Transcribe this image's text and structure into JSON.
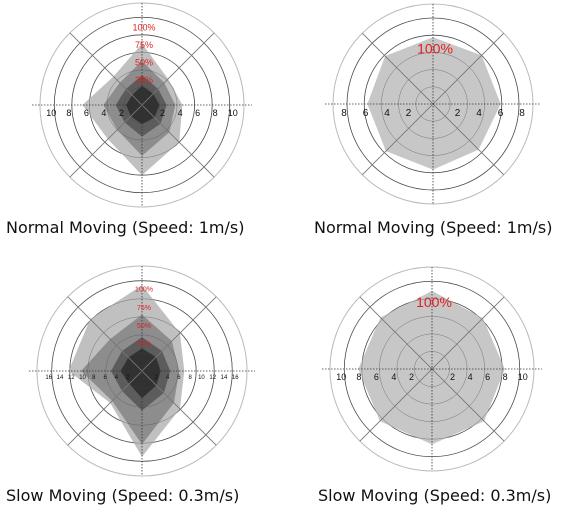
{
  "colors": {
    "red_label": "#e02020",
    "grid": "#555555",
    "outer_ring": "#bbbbbb"
  },
  "chart_data": [
    {
      "type": "radar",
      "caption": "Normal Moving (Speed: 1m/s)",
      "axis_max": 10,
      "ticks": [
        "10",
        "8",
        "6",
        "4",
        "2",
        "2",
        "4",
        "6",
        "8",
        "10"
      ],
      "tick_values": [
        10,
        8,
        6,
        4,
        2,
        2,
        4,
        6,
        8,
        10
      ],
      "series": [
        {
          "label": "100%",
          "fill": "#bdbdbd",
          "values": [
            7.0,
            4.2,
            4.6,
            6.0,
            8.0,
            5.5,
            6.8,
            4.6
          ]
        },
        {
          "label": "75%",
          "fill": "#8a8a8a",
          "values": [
            5.0,
            3.6,
            3.8,
            4.4,
            5.8,
            4.0,
            4.4,
            3.6
          ]
        },
        {
          "label": "50%",
          "fill": "#5a5a5a",
          "values": [
            3.4,
            2.6,
            2.8,
            3.0,
            3.6,
            2.8,
            3.0,
            2.6
          ]
        },
        {
          "label": "35%",
          "fill": "#2e2e2e",
          "values": [
            2.2,
            1.8,
            2.0,
            2.0,
            2.2,
            1.8,
            1.8,
            1.6
          ]
        }
      ]
    },
    {
      "type": "radar",
      "caption": "Normal Moving (Speed: 1m/s)",
      "axis_max": 8,
      "ticks": [
        "8",
        "6",
        "4",
        "2",
        "2",
        "4",
        "6",
        "8"
      ],
      "tick_values": [
        8,
        6,
        4,
        2,
        2,
        4,
        6,
        8
      ],
      "series": [
        {
          "label": "100%",
          "fill": "#c4c4c4",
          "values": [
            6.2,
            6.4,
            6.3,
            6.0,
            6.1,
            6.2,
            6.1,
            6.3
          ]
        }
      ]
    },
    {
      "type": "radar",
      "caption": "Slow Moving (Speed: 0.3m/s)",
      "axis_max": 16,
      "ticks": [
        "16",
        "14",
        "12",
        "10",
        "8",
        "6",
        "4",
        "2",
        "2",
        "4",
        "6",
        "8",
        "10",
        "12",
        "14",
        "16"
      ],
      "tick_values": [
        16,
        14,
        12,
        10,
        8,
        6,
        4,
        2,
        2,
        4,
        6,
        8,
        10,
        12,
        14,
        16
      ],
      "series": [
        {
          "label": "100%",
          "fill": "#bdbdbd",
          "values": [
            15.2,
            9.5,
            7.5,
            9.5,
            15.2,
            8.0,
            13.0,
            13.0
          ]
        },
        {
          "label": "75%",
          "fill": "#8a8a8a",
          "values": [
            10.0,
            7.5,
            6.6,
            8.0,
            13.0,
            7.5,
            10.8,
            8.0
          ]
        },
        {
          "label": "50%",
          "fill": "#5a5a5a",
          "values": [
            6.0,
            5.0,
            5.0,
            5.5,
            7.0,
            5.0,
            5.5,
            5.0
          ]
        },
        {
          "label": "35%",
          "fill": "#2e2e2e",
          "values": [
            4.0,
            3.5,
            3.3,
            3.6,
            4.8,
            3.2,
            3.8,
            3.4
          ]
        }
      ]
    },
    {
      "type": "radar",
      "caption": "Slow Moving (Speed: 0.3m/s)",
      "axis_max": 10,
      "ticks": [
        "10",
        "8",
        "6",
        "4",
        "2",
        "2",
        "4",
        "6",
        "8",
        "10"
      ],
      "tick_values": [
        10,
        8,
        6,
        4,
        2,
        2,
        4,
        6,
        8,
        10
      ],
      "series": [
        {
          "label": "100%",
          "fill": "#c4c4c4",
          "values": [
            8.9,
            8.2,
            8.3,
            8.4,
            8.6,
            8.4,
            8.4,
            8.3
          ]
        }
      ]
    }
  ]
}
